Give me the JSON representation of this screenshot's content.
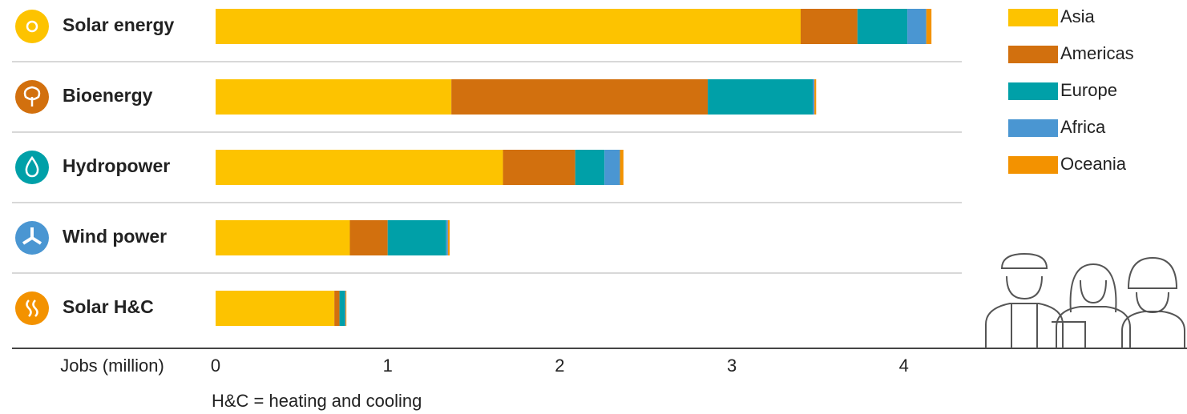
{
  "chart_data": {
    "type": "stacked-barh",
    "categories": [
      "Solar energy",
      "Bioenergy",
      "Hydropower",
      "Wind power",
      "Solar H&C"
    ],
    "series": [
      {
        "name": "Asia",
        "color": "#fdc300",
        "values": [
          3.4,
          1.37,
          1.67,
          0.78,
          0.69
        ]
      },
      {
        "name": "Americas",
        "color": "#d2700e",
        "values": [
          0.33,
          1.49,
          0.42,
          0.22,
          0.03
        ]
      },
      {
        "name": "Europe",
        "color": "#00a0a8",
        "values": [
          0.29,
          0.61,
          0.17,
          0.34,
          0.03
        ]
      },
      {
        "name": "Africa",
        "color": "#4a96d2",
        "values": [
          0.11,
          0.01,
          0.09,
          0.01,
          0.005
        ]
      },
      {
        "name": "Oceania",
        "color": "#f39200",
        "values": [
          0.03,
          0.01,
          0.02,
          0.01,
          0.005
        ]
      }
    ],
    "xlabel": "Jobs (million)",
    "xlim": [
      0,
      4.3
    ],
    "xticks": [
      0,
      1,
      2,
      3,
      4
    ],
    "note": "H&C = heating and cooling"
  }
}
